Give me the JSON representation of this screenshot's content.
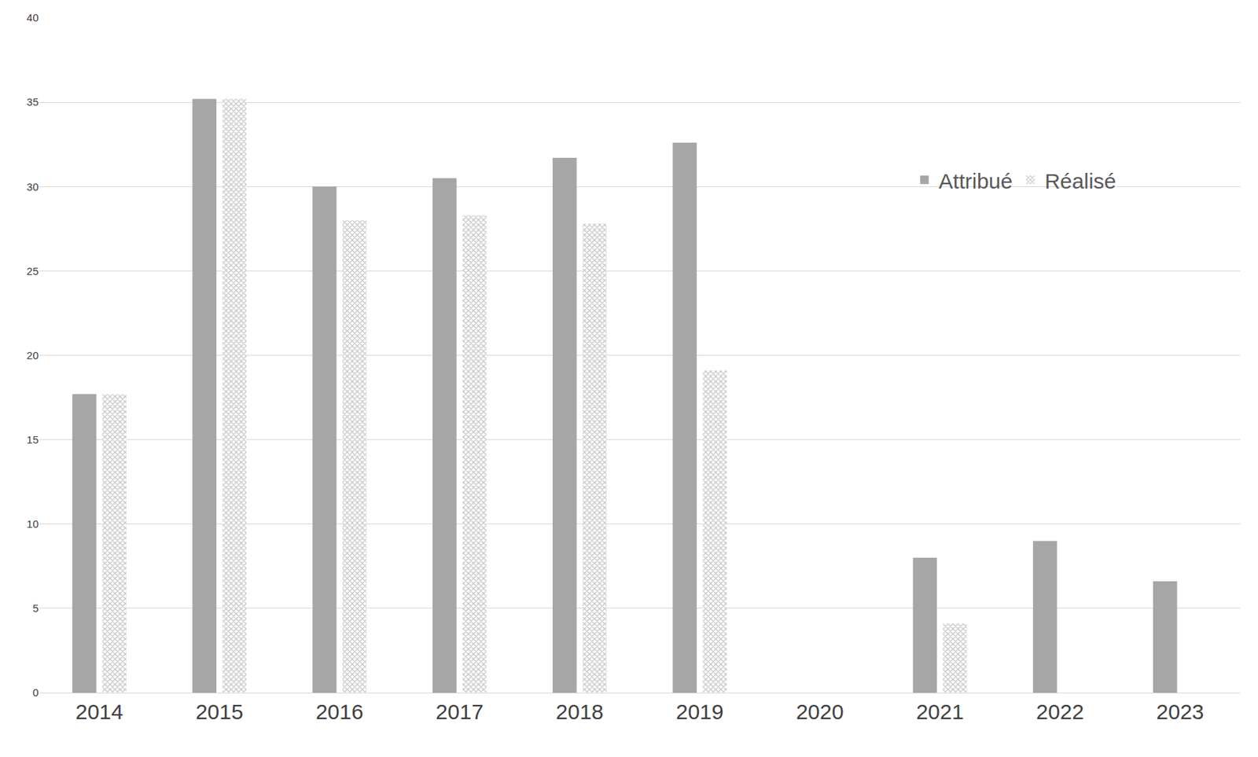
{
  "chart_data": {
    "type": "bar",
    "categories": [
      "2014",
      "2015",
      "2016",
      "2017",
      "2018",
      "2019",
      "2020",
      "2021",
      "2022",
      "2023"
    ],
    "series": [
      {
        "name": "Attribué",
        "color": "#a6a6a6",
        "marker": "solid",
        "values": [
          17.7,
          35.2,
          30,
          30.5,
          31.7,
          32.6,
          null,
          8,
          9,
          6.6
        ]
      },
      {
        "name": "Réalisé",
        "color": "#8c8c8c",
        "marker": "crosshatch",
        "values": [
          17.7,
          35.2,
          28,
          28.3,
          27.8,
          19.1,
          null,
          4.1,
          null,
          null
        ]
      }
    ],
    "ylim": [
      0,
      40
    ],
    "yticks": [
      0,
      5,
      10,
      15,
      20,
      25,
      30,
      35,
      40
    ],
    "grid": true,
    "legend": "upper right"
  }
}
